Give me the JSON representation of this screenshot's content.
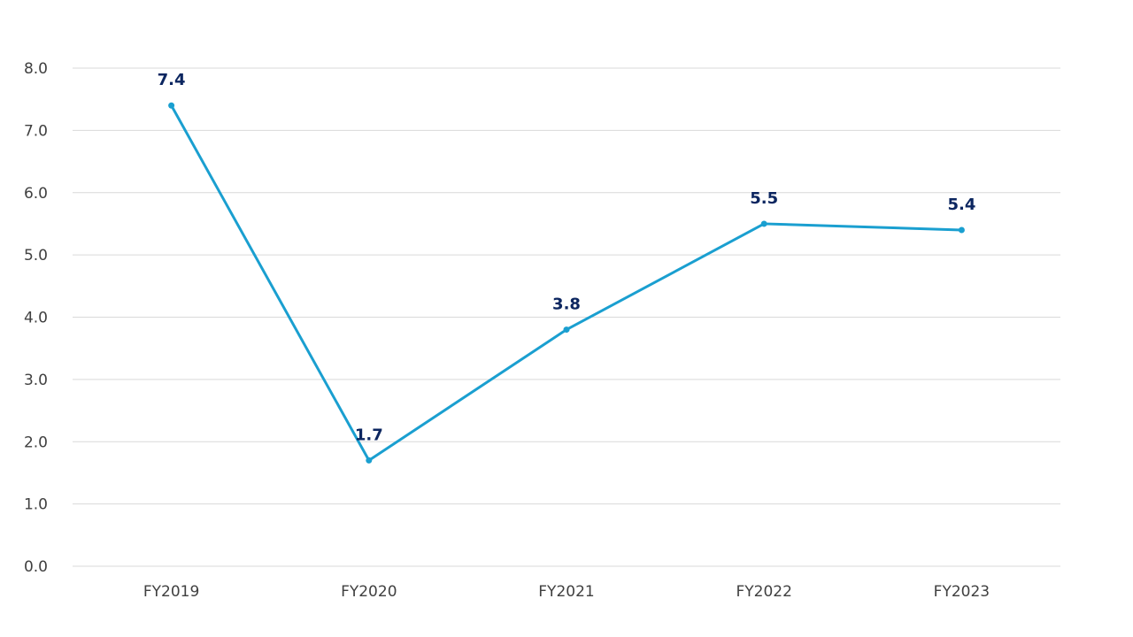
{
  "chart_data": {
    "type": "line",
    "categories": [
      "FY2019",
      "FY2020",
      "FY2021",
      "FY2022",
      "FY2023"
    ],
    "series": [
      {
        "values": [
          7.4,
          1.7,
          3.8,
          5.5,
          5.4
        ]
      }
    ],
    "data_labels": [
      "7.4",
      "1.7",
      "3.8",
      "5.5",
      "5.4"
    ],
    "y_ticks": [
      "0.0",
      "1.0",
      "2.0",
      "3.0",
      "4.0",
      "5.0",
      "6.0",
      "7.0",
      "8.0"
    ],
    "ylim": [
      0,
      8
    ],
    "grid": true,
    "legend": "none",
    "colors": {
      "line": "#1a9fd0",
      "label": "#0c2660",
      "grid": "#d9d9d9",
      "tick_text": "#404040"
    }
  }
}
